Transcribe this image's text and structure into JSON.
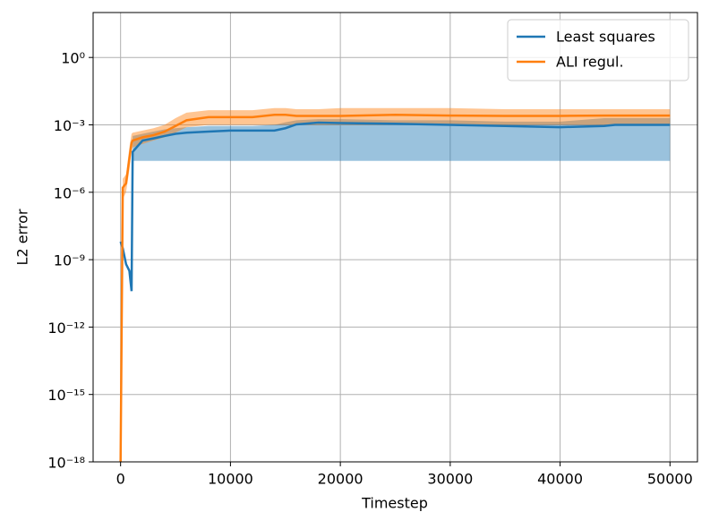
{
  "chart_data": {
    "type": "line",
    "xlabel": "Timestep",
    "ylabel": "L2 error",
    "x": [
      0,
      200,
      500,
      800,
      1000,
      1100,
      2000,
      3000,
      4000,
      5000,
      6000,
      8000,
      10000,
      12000,
      14000,
      15000,
      16000,
      18000,
      20000,
      25000,
      30000,
      35000,
      40000,
      44000,
      45000,
      50000
    ],
    "series": [
      {
        "name": "Least squares",
        "color": "#1f77b4",
        "values": [
          6.3e-09,
          3.2e-09,
          6.3e-10,
          3.2e-10,
          4e-11,
          6.3e-05,
          0.0002,
          0.00025,
          0.00032,
          0.0004,
          0.00045,
          0.0005,
          0.00056,
          0.00056,
          0.00056,
          0.00071,
          0.00105,
          0.00126,
          0.0012,
          0.00112,
          0.001,
          0.00089,
          0.00079,
          0.00089,
          0.001,
          0.001
        ],
        "band_lower": [
          null,
          null,
          null,
          null,
          null,
          2.5e-05,
          2.5e-05,
          2.5e-05,
          2.5e-05,
          2.5e-05,
          2.5e-05,
          2.5e-05,
          2.5e-05,
          2.5e-05,
          2.5e-05,
          2.5e-05,
          2.5e-05,
          2.5e-05,
          2.5e-05,
          2.5e-05,
          2.5e-05,
          2.5e-05,
          2.5e-05,
          2.5e-05,
          2.5e-05,
          2.5e-05
        ],
        "band_upper": [
          null,
          null,
          null,
          null,
          null,
          0.00032,
          0.0004,
          0.0005,
          0.00063,
          0.00071,
          0.00079,
          0.00089,
          0.00089,
          0.00089,
          0.001,
          0.0013,
          0.0016,
          0.0018,
          0.0018,
          0.0016,
          0.0016,
          0.0014,
          0.0014,
          0.002,
          0.002,
          0.002
        ]
      },
      {
        "name": "ALI regul.",
        "color": "#ff7f0e",
        "values": [
          1e-18,
          1.6e-06,
          2.5e-06,
          3.2e-05,
          0.00016,
          0.0002,
          0.00028,
          0.00035,
          0.0005,
          0.00089,
          0.0016,
          0.0022,
          0.0022,
          0.0022,
          0.0028,
          0.0028,
          0.0025,
          0.0025,
          0.0025,
          0.0028,
          0.0026,
          0.0025,
          0.0025,
          0.0026,
          0.0026,
          0.0026
        ],
        "band_lower": [
          null,
          5e-07,
          1e-06,
          1e-05,
          7e-05,
          0.0001,
          0.00014,
          0.0002,
          0.00028,
          0.00045,
          0.00079,
          0.001,
          0.001,
          0.001,
          0.001,
          0.001,
          0.001,
          0.001,
          0.001,
          0.001,
          0.001,
          0.001,
          0.001,
          0.001,
          0.001,
          0.001
        ],
        "band_upper": [
          null,
          4e-06,
          6.3e-06,
          0.0001,
          0.0004,
          0.00045,
          0.00056,
          0.00071,
          0.001,
          0.002,
          0.0035,
          0.0045,
          0.0045,
          0.0045,
          0.0056,
          0.0056,
          0.005,
          0.005,
          0.0056,
          0.0056,
          0.0056,
          0.005,
          0.005,
          0.005,
          0.005,
          0.005
        ]
      }
    ],
    "xlim": [
      -2500,
      52500
    ],
    "xticks": [
      0,
      10000,
      20000,
      30000,
      40000,
      50000
    ],
    "ylim": [
      1e-18,
      100
    ],
    "log_y": true,
    "yticks": [
      {
        "value": 1e-18,
        "label": "10⁻¹⁸"
      },
      {
        "value": 1e-15,
        "label": "10⁻¹⁵"
      },
      {
        "value": 1e-12,
        "label": "10⁻¹²"
      },
      {
        "value": 1e-09,
        "label": "10⁻⁹"
      },
      {
        "value": 1e-06,
        "label": "10⁻⁶"
      },
      {
        "value": 0.001,
        "label": "10⁻³"
      },
      {
        "value": 1,
        "label": "10⁰"
      }
    ],
    "grid": true,
    "legend": "upper right"
  }
}
